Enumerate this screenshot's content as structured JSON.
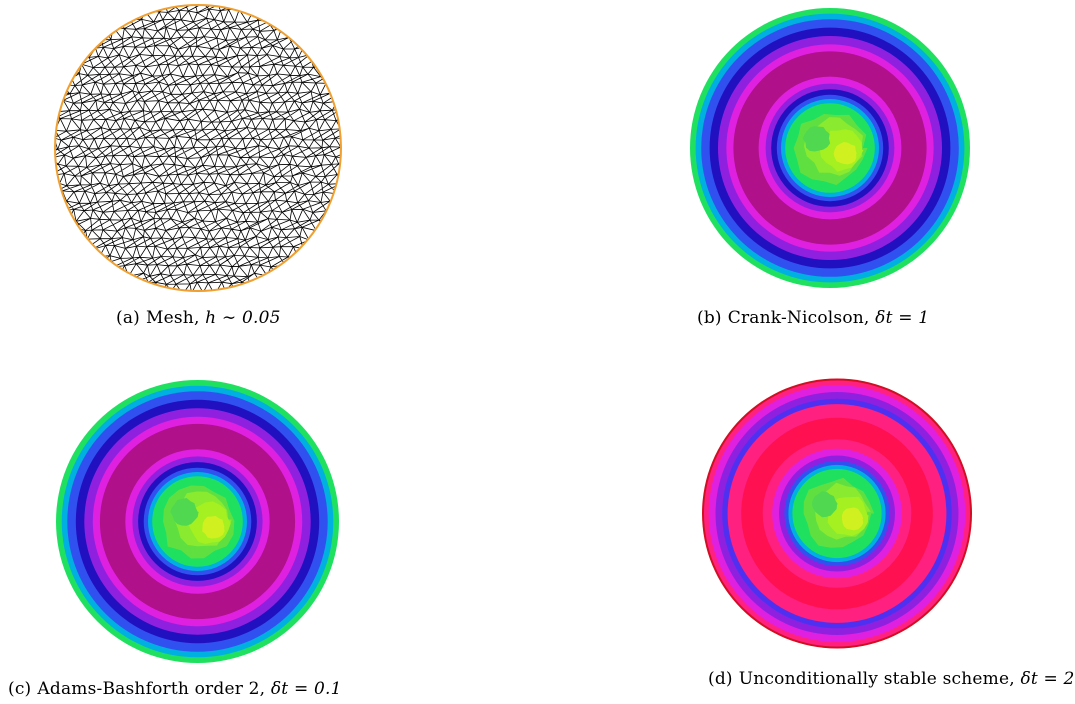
{
  "figure": {
    "panels": [
      {
        "id": "a",
        "label": "(a)",
        "caption_text": "Mesh, ",
        "caption_math": "h ∼ 0.05",
        "kind": "mesh"
      },
      {
        "id": "b",
        "label": "(b)",
        "caption_text": "Crank-Nicolson, ",
        "caption_math": "δt = 1",
        "kind": "field"
      },
      {
        "id": "c",
        "label": "(c)",
        "caption_text": "Adams-Bashforth order 2, ",
        "caption_math": "δt = 0.1",
        "kind": "field"
      },
      {
        "id": "d",
        "label": "(d)",
        "caption_text": "Unconditionally stable scheme, ",
        "caption_math": "δt = 2",
        "kind": "field"
      }
    ],
    "colors": {
      "mesh_line": "#000000",
      "mesh_boundary": "#f0a030",
      "field_center": "#a4f020",
      "field_ring": [
        "#20e060",
        "#00b0e0",
        "#3050f0",
        "#2010c0",
        "#9020e0",
        "#e020e0",
        "#b0108a"
      ],
      "field_ring_d_peak": "#ff1050",
      "field_ring_d_boundary": "#d01020"
    }
  }
}
